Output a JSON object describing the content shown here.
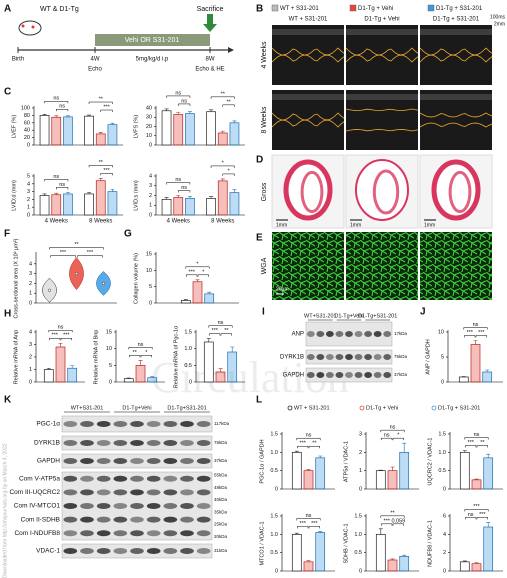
{
  "group_names": [
    "WT + S31-201",
    "D1-Tg + Vehi",
    "D1-Tg + S31-201"
  ],
  "group_colors": [
    "#ffffff",
    "#e8473b",
    "#3d9ae0"
  ],
  "watermark": "Circulation",
  "side_note": "Downloaded from http://ahajournals.org by on March 4, 2022",
  "panel_a": {
    "label": "A",
    "animals": "WT & D1-Tg",
    "sacrifice": "Sacrifice",
    "treatment": "Vehi OR S31-201",
    "dose": "5mg/kg/d i.p",
    "birth": "Birth",
    "week4": "4W",
    "week8": "8W",
    "echo": "Echo",
    "echo_he": "Echo & HE"
  },
  "panel_b": {
    "label": "B",
    "rows": [
      "4 Weeks",
      "8 Weeks"
    ],
    "time_bar": "100ms",
    "depth_bar": "2mm"
  },
  "panel_c": {
    "label": "C",
    "x_groups": [
      "4 Weeks",
      "8 Weeks"
    ],
    "charts": [
      {
        "ylabel": "LVEF (%)",
        "ylim": [
          0,
          100
        ],
        "yticks": [
          0,
          20,
          40,
          60,
          80,
          100
        ],
        "values": [
          [
            80,
            75,
            76
          ],
          [
            78,
            30,
            55
          ]
        ],
        "errors": [
          [
            3,
            4,
            3
          ],
          [
            3,
            4,
            4
          ]
        ],
        "sig": [
          [
            "ns",
            "ns"
          ],
          [
            "**",
            "***"
          ]
        ]
      },
      {
        "ylabel": "LVFS (%)",
        "ylim": [
          0,
          40
        ],
        "yticks": [
          0,
          10,
          20,
          30,
          40
        ],
        "values": [
          [
            37,
            33,
            34
          ],
          [
            36,
            13,
            24
          ]
        ],
        "errors": [
          [
            2,
            2,
            2
          ],
          [
            2,
            2,
            2
          ]
        ],
        "sig": [
          [
            "ns",
            "ns"
          ],
          [
            "**",
            "**"
          ]
        ]
      },
      {
        "ylabel": "LVID;d (mm)",
        "ylim": [
          0,
          5
        ],
        "yticks": [
          0,
          1,
          2,
          3,
          4,
          5
        ],
        "values": [
          [
            2.5,
            2.6,
            2.7
          ],
          [
            2.7,
            4.4,
            3.0
          ]
        ],
        "errors": [
          [
            0.2,
            0.2,
            0.2
          ],
          [
            0.2,
            0.3,
            0.3
          ]
        ],
        "sig": [
          [
            "ns",
            "ns"
          ],
          [
            "**",
            "***"
          ]
        ]
      },
      {
        "ylabel": "LVID;s (mm)",
        "ylim": [
          0,
          4
        ],
        "yticks": [
          0,
          1,
          2,
          3,
          4
        ],
        "values": [
          [
            1.6,
            1.8,
            1.7
          ],
          [
            1.7,
            3.5,
            2.3
          ]
        ],
        "errors": [
          [
            0.2,
            0.2,
            0.2
          ],
          [
            0.2,
            0.2,
            0.3
          ]
        ],
        "sig": [
          [
            "ns",
            "ns"
          ],
          [
            "*",
            "*"
          ]
        ]
      }
    ]
  },
  "panel_d": {
    "label": "D",
    "row": "Gross",
    "scale": "1mm"
  },
  "panel_e": {
    "label": "E",
    "row": "WGA",
    "scale": "20μm"
  },
  "panel_f": {
    "label": "F",
    "ylabel": "Cross-sectional area (X 10² μm²)",
    "ylim": [
      0,
      5
    ],
    "yticks": [
      0,
      1,
      2,
      3,
      4
    ],
    "values": [
      1.3,
      3.0,
      2.0
    ],
    "sig": [
      "***",
      "***",
      "**"
    ]
  },
  "panel_g": {
    "label": "G",
    "ylabel": "Collagen volume (%)",
    "ylim": [
      0,
      15
    ],
    "yticks": [
      0,
      5,
      10,
      15
    ],
    "values": [
      0.8,
      6.5,
      2.8
    ],
    "errors": [
      0.3,
      0.6,
      0.5
    ],
    "sig": [
      "***",
      "*",
      "*"
    ]
  },
  "panel_h": {
    "label": "H",
    "charts": [
      {
        "ylabel": "Relative mRNA of Anp",
        "ylim": [
          0,
          4
        ],
        "yticks": [
          0,
          1,
          2,
          3,
          4
        ],
        "values": [
          1,
          2.8,
          1.1
        ],
        "errors": [
          0.1,
          0.3,
          0.2
        ],
        "sig": [
          "***",
          "***",
          "ns"
        ]
      },
      {
        "ylabel": "Relative mRNA of Bnp",
        "ylim": [
          0,
          15
        ],
        "yticks": [
          0,
          5,
          10,
          15
        ],
        "values": [
          1,
          5,
          1.3
        ],
        "errors": [
          0.2,
          1.5,
          0.3
        ],
        "sig": [
          "**",
          "*",
          "ns"
        ]
      },
      {
        "ylabel": "Relative mRNA of Pgc-1α",
        "ylim": [
          0,
          1.5
        ],
        "yticks": [
          0,
          {
            "value": 0.5,
            "label": "0.5"
          },
          {
            "value": 1,
            "label": "1.0"
          },
          {
            "value": 1.5,
            "label": "1.5"
          }
        ],
        "values": [
          1.2,
          0.3,
          0.9
        ],
        "errors": [
          0.1,
          0.1,
          0.15
        ],
        "sig": [
          "***",
          "**",
          "ns"
        ]
      }
    ]
  },
  "panel_i": {
    "label": "I",
    "lanes": [
      "WT+S31-201",
      "D1-Tg+Vehi",
      "D1-Tg+S31-201"
    ],
    "rows": [
      {
        "names": [
          "ANP"
        ],
        "kda": [
          "17kDa"
        ]
      },
      {
        "names": [
          "DYRK1B"
        ],
        "kda": [
          "75kDa"
        ]
      },
      {
        "names": [
          "GAPDH"
        ],
        "kda": [
          "37kDa"
        ]
      }
    ]
  },
  "panel_j": {
    "label": "J",
    "ylabel": "ANP / GAPDH",
    "ylim": [
      0,
      10
    ],
    "yticks": [
      0,
      5,
      10
    ],
    "values": [
      1,
      7.5,
      2
    ],
    "errors": [
      0.1,
      0.8,
      0.4
    ],
    "sig": [
      "***",
      "***",
      "ns"
    ]
  },
  "panel_k": {
    "label": "K",
    "lanes": [
      "WT+S31-201",
      "D1-Tg+Vehi",
      "D1-Tg+S31-201"
    ],
    "rows": [
      {
        "names": [
          "PGC-1α"
        ],
        "kda": [
          "117kDa"
        ]
      },
      {
        "names": [
          "DYRK1B"
        ],
        "kda": [
          "75kDa"
        ]
      },
      {
        "names": [
          "GAPDH"
        ],
        "kda": [
          "37kDa"
        ]
      },
      {
        "names": [
          "Com V-ATP5a",
          "Com III-UQCRC2",
          "Com IV-MTCO1",
          "Com II-SDHB",
          "Com I-NDUFB8"
        ],
        "kda": [
          "55kDa",
          "48kDa",
          "40kDa",
          "35kDa",
          "25kDa",
          "20kDa"
        ]
      },
      {
        "names": [
          "VDAC-1"
        ],
        "kda": [
          "31kDa"
        ]
      }
    ]
  },
  "panel_l": {
    "label": "L",
    "charts": [
      {
        "ylabel": "PGC-1α / GAPDH",
        "ylim": [
          0,
          1.5
        ],
        "yticks": [
          0,
          {
            "value": 0.5,
            "label": "0.5"
          },
          {
            "value": 1,
            "label": "1.0"
          },
          {
            "value": 1.5,
            "label": "1.5"
          }
        ],
        "values": [
          1,
          0.5,
          0.85
        ],
        "errors": [
          0.03,
          0.03,
          0.05
        ],
        "sig": [
          "***",
          "**",
          "ns"
        ]
      },
      {
        "ylabel": "ATP5a / VDAC-1",
        "ylim": [
          0,
          3
        ],
        "yticks": [
          0,
          1,
          2,
          3
        ],
        "values": [
          1,
          1,
          2
        ],
        "errors": [
          0.03,
          0.2,
          0.5
        ],
        "sig": [
          "ns",
          "*",
          "ns"
        ]
      },
      {
        "ylabel": "UQCRC2 / VDAC-1",
        "ylim": [
          0,
          1.5
        ],
        "yticks": [
          0,
          {
            "value": 0.5,
            "label": "0.5"
          },
          {
            "value": 1,
            "label": "1.0"
          },
          {
            "value": 1.5,
            "label": "1.5"
          }
        ],
        "values": [
          1,
          0.25,
          0.85
        ],
        "errors": [
          0.05,
          0.02,
          0.1
        ],
        "sig": [
          "***",
          "**",
          "ns"
        ]
      },
      {
        "ylabel": "MTCO1 / VDAC-1",
        "ylim": [
          0,
          1.5
        ],
        "yticks": [
          0,
          {
            "value": 0.5,
            "label": "0.5"
          },
          {
            "value": 1,
            "label": "1.0"
          },
          {
            "value": 1.5,
            "label": "1.5"
          }
        ],
        "values": [
          1,
          0.25,
          1.05
        ],
        "errors": [
          0.03,
          0.03,
          0.03
        ],
        "sig": [
          "***",
          "***",
          "ns"
        ]
      },
      {
        "ylabel": "SDHB / VDAC-1",
        "ylim": [
          0,
          1.5
        ],
        "yticks": [
          0,
          {
            "value": 0.5,
            "label": "0.5"
          },
          {
            "value": 1,
            "label": "1.0"
          },
          {
            "value": 1.5,
            "label": "1.5"
          }
        ],
        "values": [
          1,
          0.3,
          0.4
        ],
        "errors": [
          0.15,
          0.03,
          0.03
        ],
        "sig": [
          "***",
          "0.059",
          "**"
        ]
      },
      {
        "ylabel": "NDUFB8 / VDAC-1",
        "ylim": [
          0,
          6
        ],
        "yticks": [
          0,
          2,
          4,
          6
        ],
        "values": [
          1,
          0.8,
          4.8
        ],
        "errors": [
          0.1,
          0.1,
          0.5
        ],
        "sig": [
          "ns",
          "***",
          "***"
        ]
      }
    ]
  }
}
